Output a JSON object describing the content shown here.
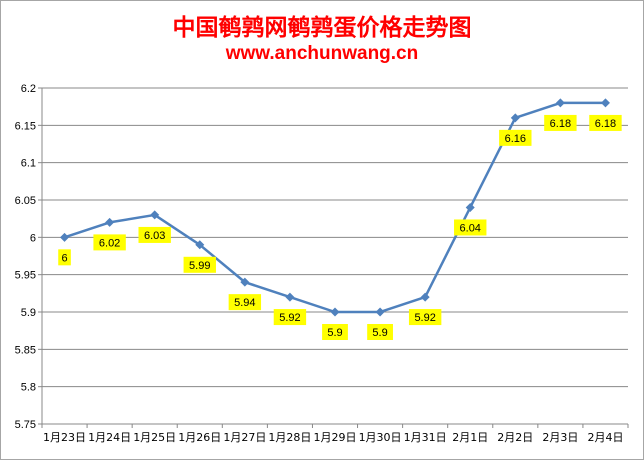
{
  "chart_data": {
    "type": "line",
    "title": "中国鹌鹑网鹌鹑蛋价格走势图",
    "subtitle": "www.anchunwang.cn",
    "categories": [
      "1月23日",
      "1月24日",
      "1月25日",
      "1月26日",
      "1月27日",
      "1月28日",
      "1月29日",
      "1月30日",
      "1月31日",
      "2月1日",
      "2月2日",
      "2月3日",
      "2月4日"
    ],
    "points": [
      {
        "x": "1月23日",
        "y": 6,
        "label": "6"
      },
      {
        "x": "1月24日",
        "y": 6.02,
        "label": "6.02"
      },
      {
        "x": "1月25日",
        "y": 6.03,
        "label": "6.03"
      },
      {
        "x": "1月26日",
        "y": 5.99,
        "label": "5.99"
      },
      {
        "x": "1月27日",
        "y": 5.94,
        "label": "5.94"
      },
      {
        "x": "1月28日",
        "y": 5.92,
        "label": "5.92"
      },
      {
        "x": "1月29日",
        "y": 5.9,
        "label": "5.9"
      },
      {
        "x": "1月30日",
        "y": 5.9,
        "label": "5.9"
      },
      {
        "x": "1月31日",
        "y": 5.92,
        "label": "5.92"
      },
      {
        "x": "2月1日",
        "y": 6.04,
        "label": "6.04"
      },
      {
        "x": "2月2日",
        "y": 6.16,
        "label": "6.16"
      },
      {
        "x": "2月3日",
        "y": 6.18,
        "label": "6.18"
      },
      {
        "x": "2月4日",
        "y": 6.18,
        "label": "6.18"
      }
    ],
    "ylim": [
      5.75,
      6.2
    ],
    "yticks": [
      "5.75",
      "5.8",
      "5.85",
      "5.9",
      "5.95",
      "6",
      "6.05",
      "6.1",
      "6.15",
      "6.2"
    ],
    "grid": "horizontal",
    "legend": "none",
    "colors": {
      "line": "#4f81bd",
      "marker": "#4f81bd",
      "label_bg": "#ffff00",
      "title": "#ff0000",
      "grid": "#888888"
    }
  }
}
